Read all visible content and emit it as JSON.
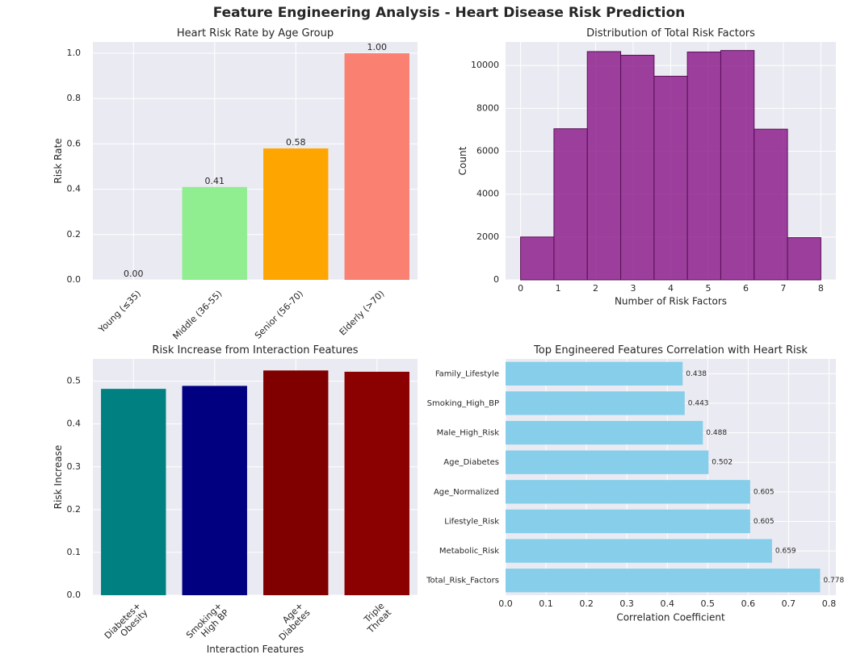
{
  "suptitle": "Feature Engineering Analysis - Heart Disease Risk Prediction",
  "colors": {
    "plot_bg": "#eaeaf2",
    "grid": "#ffffff",
    "text": "#262626"
  },
  "chart_data": [
    {
      "type": "bar",
      "title": "Heart Risk Rate by Age Group",
      "xlabel": "",
      "ylabel": "Risk Rate",
      "ylim": [
        0,
        1.05
      ],
      "yticks": [
        0.0,
        0.2,
        0.4,
        0.6,
        0.8,
        1.0
      ],
      "ytick_labels": [
        "0.0",
        "0.2",
        "0.4",
        "0.6",
        "0.8",
        "1.0"
      ],
      "categories": [
        "Young (≤35)",
        "Middle (36-55)",
        "Senior (56-70)",
        "Elderly (>70)"
      ],
      "values": [
        0.0,
        0.41,
        0.58,
        1.0
      ],
      "value_labels": [
        "0.00",
        "0.41",
        "0.58",
        "1.00"
      ],
      "colors": [
        "#87ceeb",
        "#90ee90",
        "#ffa500",
        "#fa8072"
      ],
      "grid": true
    },
    {
      "type": "bar",
      "subtype": "histogram",
      "title": "Distribution of Total Risk Factors",
      "xlabel": "Number of Risk Factors",
      "ylabel": "Count",
      "xlim": [
        -0.4,
        8.4
      ],
      "ylim": [
        0,
        11100
      ],
      "xticks": [
        0,
        1,
        2,
        3,
        4,
        5,
        6,
        7,
        8
      ],
      "xtick_labels": [
        "0",
        "1",
        "2",
        "3",
        "4",
        "5",
        "6",
        "7",
        "8"
      ],
      "yticks": [
        0,
        2000,
        4000,
        6000,
        8000,
        10000
      ],
      "ytick_labels": [
        "0",
        "2000",
        "4000",
        "6000",
        "8000",
        "10000"
      ],
      "bin_edges": [
        0,
        0.889,
        1.778,
        2.667,
        3.556,
        4.444,
        5.333,
        6.222,
        7.111,
        8.0
      ],
      "values": [
        2000,
        7050,
        10650,
        10480,
        9500,
        10630,
        10700,
        7030,
        1970
      ],
      "color": "#8b1a89",
      "grid": true
    },
    {
      "type": "bar",
      "title": "Risk Increase from Interaction Features",
      "xlabel": "Interaction Features",
      "ylabel": "Risk Increase",
      "ylim": [
        0,
        0.552
      ],
      "yticks": [
        0.0,
        0.1,
        0.2,
        0.3,
        0.4,
        0.5
      ],
      "ytick_labels": [
        "0.0",
        "0.1",
        "0.2",
        "0.3",
        "0.4",
        "0.5"
      ],
      "categories": [
        [
          "Diabetes+",
          "Obesity"
        ],
        [
          "Smoking+",
          "High BP"
        ],
        [
          "Age+",
          "Diabetes"
        ],
        [
          "Triple",
          "Threat"
        ]
      ],
      "values": [
        0.482,
        0.489,
        0.525,
        0.522
      ],
      "colors": [
        "#008080",
        "#000080",
        "#800000",
        "#8b0000"
      ],
      "grid": true
    },
    {
      "type": "bar",
      "orientation": "horizontal",
      "title": "Top Engineered Features Correlation with Heart Risk",
      "xlabel": "Correlation Coefficient",
      "ylabel": "",
      "xlim": [
        0,
        0.817
      ],
      "xticks": [
        0.0,
        0.1,
        0.2,
        0.3,
        0.4,
        0.5,
        0.6,
        0.7,
        0.8
      ],
      "xtick_labels": [
        "0.0",
        "0.1",
        "0.2",
        "0.3",
        "0.4",
        "0.5",
        "0.6",
        "0.7",
        "0.8"
      ],
      "categories": [
        "Total_Risk_Factors",
        "Metabolic_Risk",
        "Lifestyle_Risk",
        "Age_Normalized",
        "Age_Diabetes",
        "Male_High_Risk",
        "Smoking_High_BP",
        "Family_Lifestyle"
      ],
      "values": [
        0.778,
        0.659,
        0.605,
        0.605,
        0.502,
        0.488,
        0.443,
        0.438
      ],
      "value_labels": [
        "0.778",
        "0.659",
        "0.605",
        "0.605",
        "0.502",
        "0.488",
        "0.443",
        "0.438"
      ],
      "color": "#87ceeb",
      "grid": true
    }
  ]
}
